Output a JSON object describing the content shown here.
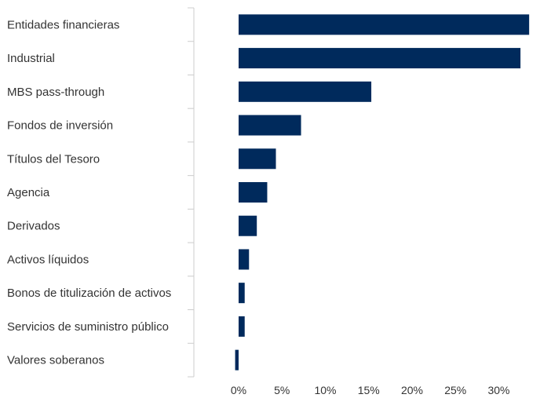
{
  "chart_data": {
    "type": "bar",
    "orientation": "horizontal",
    "categories": [
      "Entidades financieras",
      "Industrial",
      "MBS pass-through",
      "Fondos de inversión",
      "Títulos del Tesoro",
      "Agencia",
      "Derivados",
      "Activos líquidos",
      "Bonos de titulización de activos",
      "Servicios de suministro público",
      "Valores soberanos"
    ],
    "values": [
      33.5,
      32.5,
      15.3,
      7.2,
      4.3,
      3.3,
      2.1,
      1.2,
      0.7,
      0.7,
      -0.4
    ],
    "xlim": [
      -6,
      35
    ],
    "xticks": [
      0,
      5,
      10,
      15,
      20,
      25,
      30
    ],
    "xtick_labels": [
      "0%",
      "5%",
      "10%",
      "15%",
      "20%",
      "25%",
      "30%"
    ],
    "title": "",
    "xlabel": "",
    "ylabel": "",
    "bar_color": "#002a5c",
    "grid": false,
    "legend": "none"
  }
}
